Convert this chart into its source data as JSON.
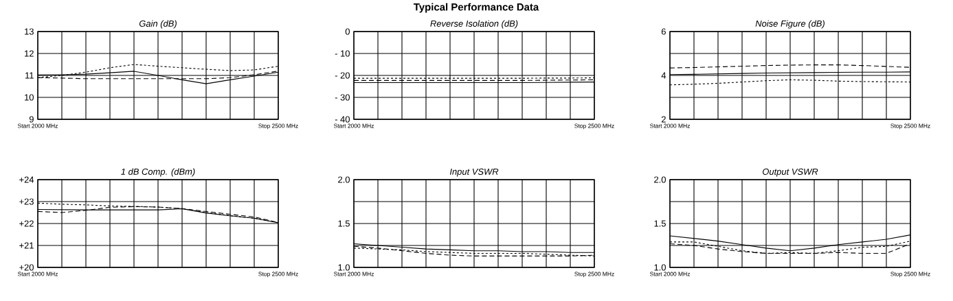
{
  "chart_data": [
    {
      "type": "line",
      "title": "Gain (dB)",
      "categories": [
        "Start 2000 MHz",
        null,
        null,
        null,
        null,
        null,
        null,
        null,
        null,
        null,
        "Stop 2500 MHz"
      ],
      "ylim": [
        9,
        13
      ],
      "yticks": [
        9,
        10,
        11,
        12,
        13
      ],
      "grid": true,
      "series": [
        {
          "color": "#000000",
          "line_style": "solid",
          "values": [
            11.02,
            11.03,
            11.06,
            11.12,
            11.19,
            11.0,
            10.8,
            10.62,
            10.8,
            10.97,
            11.15
          ]
        },
        {
          "color": "#000000",
          "line_style": "dashed",
          "values": [
            10.9,
            10.88,
            10.85,
            10.85,
            10.85,
            10.85,
            10.85,
            10.85,
            10.9,
            11.03,
            11.2
          ]
        },
        {
          "color": "#000000",
          "line_style": "dotted",
          "values": [
            10.9,
            11.0,
            11.15,
            11.35,
            11.5,
            11.42,
            11.35,
            11.28,
            11.22,
            11.25,
            11.42
          ]
        }
      ]
    },
    {
      "type": "line",
      "title": "Reverse Isolation (dB)",
      "annotations": [
        "Typical Performance Data"
      ],
      "categories": [
        "Start 2000 MHz",
        null,
        null,
        null,
        null,
        null,
        null,
        null,
        null,
        null,
        "Stop 2500 MHz"
      ],
      "ylim": [
        -40,
        0
      ],
      "yticks": [
        {
          "value": -40,
          "label": "- 40"
        },
        {
          "value": -30,
          "label": "- 30"
        },
        {
          "value": -20,
          "label": "- 20"
        },
        {
          "value": -10,
          "label": "- 10"
        },
        0
      ],
      "grid": true,
      "series": [
        {
          "color": "#000000",
          "line_style": "solid",
          "values": [
            -23.3,
            -23.3,
            -23.3,
            -23.3,
            -23.3,
            -23.3,
            -23.3,
            -23.3,
            -23.2,
            -23.1,
            -23.0
          ]
        },
        {
          "color": "#000000",
          "line_style": "dashed",
          "values": [
            -22.3,
            -22.3,
            -22.3,
            -22.3,
            -22.3,
            -22.3,
            -22.3,
            -22.3,
            -22.2,
            -22.1,
            -22.0
          ]
        },
        {
          "color": "#000000",
          "line_style": "dotted",
          "values": [
            -21.3,
            -21.3,
            -21.3,
            -21.3,
            -21.3,
            -21.3,
            -21.3,
            -21.3,
            -21.2,
            -21.2,
            -21.1
          ]
        }
      ]
    },
    {
      "type": "line",
      "title": "Noise Figure (dB)",
      "categories": [
        "Start 2000 MHz",
        null,
        null,
        null,
        null,
        null,
        null,
        null,
        null,
        null,
        "Stop 2500 MHz"
      ],
      "ylim": [
        2,
        6
      ],
      "yticks": [
        2,
        {
          "value": 3,
          "label": null
        },
        4,
        {
          "value": 5,
          "label": null
        },
        6
      ],
      "grid": true,
      "series": [
        {
          "color": "#000000",
          "line_style": "solid",
          "values": [
            4.04,
            4.05,
            4.07,
            4.09,
            4.11,
            4.12,
            4.13,
            4.14,
            4.15,
            4.15,
            4.16
          ]
        },
        {
          "color": "#000000",
          "line_style": "dashed",
          "values": [
            4.34,
            4.36,
            4.39,
            4.42,
            4.45,
            4.47,
            4.48,
            4.48,
            4.45,
            4.41,
            4.37
          ]
        },
        {
          "color": "#000000",
          "line_style": "dotted",
          "values": [
            3.57,
            3.6,
            3.64,
            3.7,
            3.76,
            3.8,
            3.78,
            3.74,
            3.72,
            3.71,
            3.7
          ]
        }
      ]
    },
    {
      "type": "line",
      "title": "1 dB Comp. (dBm)",
      "categories": [
        "Start 2000 MHz",
        null,
        null,
        null,
        null,
        null,
        null,
        null,
        null,
        null,
        "Stop 2500 MHz"
      ],
      "ylim": [
        20,
        24
      ],
      "yticks": [
        {
          "value": 20,
          "label": "+20"
        },
        {
          "value": 21,
          "label": "+21"
        },
        {
          "value": 22,
          "label": "+22"
        },
        {
          "value": 23,
          "label": "+23"
        },
        {
          "value": 24,
          "label": "+24"
        }
      ],
      "grid": true,
      "series": [
        {
          "color": "#000000",
          "line_style": "solid",
          "values": [
            22.64,
            22.63,
            22.62,
            22.62,
            22.62,
            22.62,
            22.67,
            22.48,
            22.35,
            22.24,
            22.03
          ]
        },
        {
          "color": "#000000",
          "line_style": "dashed",
          "values": [
            22.55,
            22.5,
            22.6,
            22.74,
            22.77,
            22.75,
            22.68,
            22.55,
            22.42,
            22.3,
            22.05
          ]
        },
        {
          "color": "#000000",
          "line_style": "dotted",
          "values": [
            22.93,
            22.88,
            22.85,
            22.8,
            22.78,
            22.75,
            22.68,
            22.5,
            22.36,
            22.24,
            22.04
          ]
        }
      ]
    },
    {
      "type": "line",
      "title": "Input VSWR",
      "categories": [
        "Start 2000 MHz",
        null,
        null,
        null,
        null,
        null,
        null,
        null,
        null,
        null,
        "Stop 2500 MHz"
      ],
      "ylim": [
        1,
        2
      ],
      "yticks": [
        {
          "value": 1,
          "label": "1.0"
        },
        {
          "value": 1.25,
          "label": null
        },
        1.5,
        {
          "value": 1.75,
          "label": null
        },
        {
          "value": 2,
          "label": "2.0"
        }
      ],
      "grid": true,
      "series": [
        {
          "color": "#000000",
          "line_style": "solid",
          "values": [
            1.27,
            1.25,
            1.23,
            1.21,
            1.2,
            1.19,
            1.19,
            1.18,
            1.18,
            1.17,
            1.17
          ]
        },
        {
          "color": "#000000",
          "line_style": "dashed",
          "values": [
            1.24,
            1.22,
            1.19,
            1.16,
            1.14,
            1.13,
            1.13,
            1.13,
            1.13,
            1.13,
            1.14
          ]
        },
        {
          "color": "#000000",
          "line_style": "dotted",
          "values": [
            1.22,
            1.21,
            1.2,
            1.18,
            1.17,
            1.16,
            1.16,
            1.16,
            1.15,
            1.14,
            1.13
          ]
        }
      ]
    },
    {
      "type": "line",
      "title": "Output VSWR",
      "categories": [
        "Start 2000 MHz",
        null,
        null,
        null,
        null,
        null,
        null,
        null,
        null,
        null,
        "Stop 2500 MHz"
      ],
      "ylim": [
        1,
        2
      ],
      "yticks": [
        {
          "value": 1,
          "label": "1.0"
        },
        {
          "value": 1.25,
          "label": null
        },
        1.5,
        {
          "value": 1.75,
          "label": null
        },
        {
          "value": 2,
          "label": "2.0"
        }
      ],
      "grid": true,
      "series": [
        {
          "color": "#000000",
          "line_style": "solid",
          "values": [
            1.36,
            1.33,
            1.3,
            1.26,
            1.22,
            1.19,
            1.22,
            1.26,
            1.29,
            1.32,
            1.37
          ]
        },
        {
          "color": "#000000",
          "line_style": "dashed",
          "values": [
            1.27,
            1.25,
            1.21,
            1.18,
            1.16,
            1.16,
            1.16,
            1.17,
            1.16,
            1.16,
            1.27
          ]
        },
        {
          "color": "#000000",
          "line_style": "dotted",
          "values": [
            1.29,
            1.29,
            1.24,
            1.19,
            1.16,
            1.17,
            1.16,
            1.19,
            1.23,
            1.24,
            1.3
          ]
        }
      ]
    }
  ]
}
